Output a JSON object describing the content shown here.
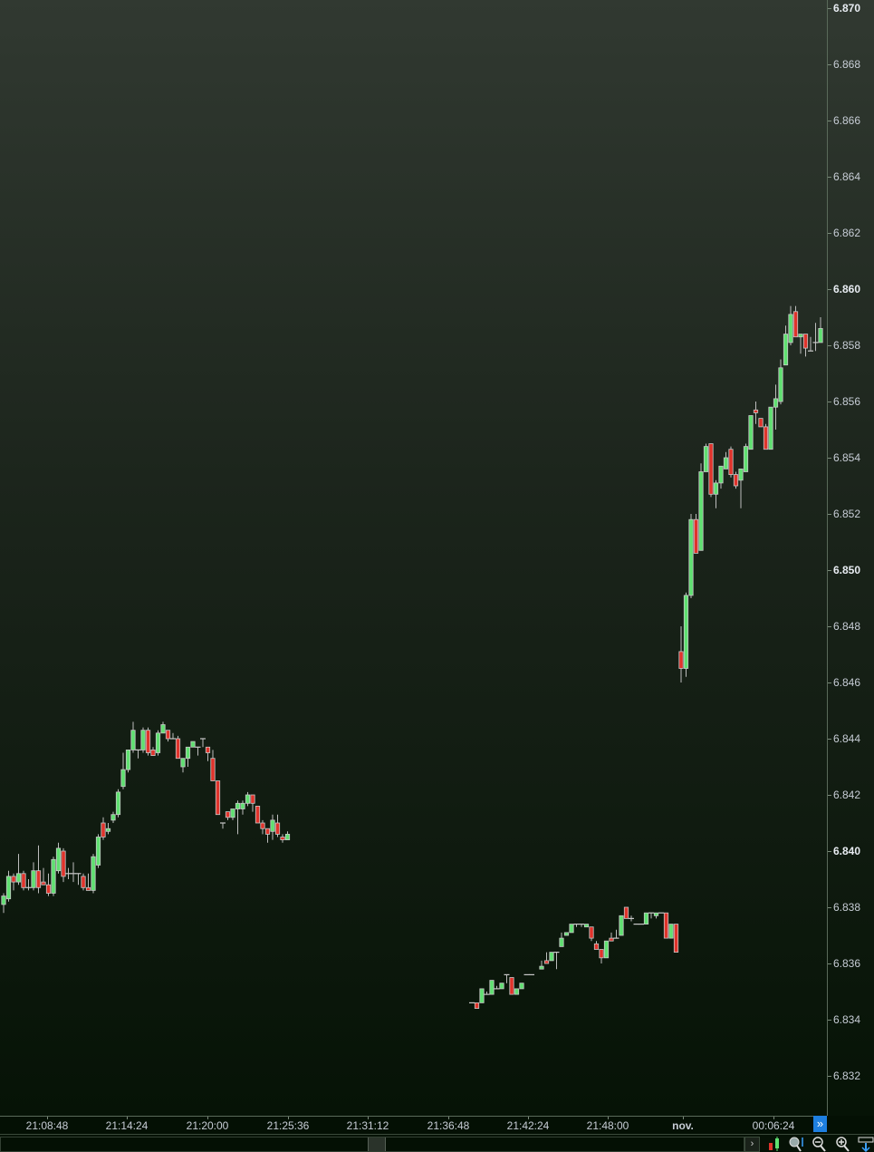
{
  "chart_data": {
    "type": "candlestick",
    "title": "",
    "y_ticks": [
      "6.870",
      "6.868",
      "6.866",
      "6.864",
      "6.862",
      "6.860",
      "6.858",
      "6.856",
      "6.854",
      "6.852",
      "6.850",
      "6.848",
      "6.846",
      "6.844",
      "6.842",
      "6.840",
      "6.838",
      "6.836",
      "6.834",
      "6.832"
    ],
    "y_bold_ticks": [
      "6.870",
      "6.860",
      "6.850",
      "6.840"
    ],
    "ylim": [
      6.8303,
      6.8703
    ],
    "x_ticks": [
      "21:08:48",
      "21:14:24",
      "21:20:00",
      "21:25:36",
      "21:31:12",
      "21:36:48",
      "21:42:24",
      "21:48:00",
      "nov.",
      "00:06:24"
    ],
    "grid": false,
    "colors": {
      "up": "#5fe070",
      "down": "#e0332b",
      "outline": "#c8c8c8",
      "wick": "#bdbdbd",
      "axis_text": "#c7cdd6",
      "accent": "#1e7fe0"
    },
    "candles_ohlc": [
      [
        6.8381,
        6.8385,
        6.8378,
        6.8384
      ],
      [
        6.8383,
        6.8393,
        6.8382,
        6.8391
      ],
      [
        6.8391,
        6.8392,
        6.8386,
        6.8389
      ],
      [
        6.8389,
        6.8399,
        6.8388,
        6.8392
      ],
      [
        6.8392,
        6.8393,
        6.8386,
        6.8387
      ],
      [
        6.8387,
        6.839,
        6.8386,
        6.8387
      ],
      [
        6.8387,
        6.8396,
        6.8386,
        6.8393
      ],
      [
        6.8393,
        6.8402,
        6.8385,
        6.8387
      ],
      [
        6.8389,
        6.8394,
        6.8388,
        6.8388
      ],
      [
        6.8388,
        6.8392,
        6.8384,
        6.8385
      ],
      [
        6.8385,
        6.8398,
        6.8384,
        6.8397
      ],
      [
        6.8393,
        6.8403,
        6.8392,
        6.8401
      ],
      [
        6.84,
        6.8401,
        6.8389,
        6.8391
      ],
      [
        6.8392,
        6.8394,
        6.839,
        6.8392
      ],
      [
        6.8392,
        6.8396,
        6.8389,
        6.8392
      ],
      [
        6.8392,
        6.8392,
        6.8388,
        6.8392
      ],
      [
        6.8391,
        6.8392,
        6.8386,
        6.8387
      ],
      [
        6.8387,
        6.8392,
        6.8386,
        6.8386
      ],
      [
        6.8386,
        6.8399,
        6.8385,
        6.8398
      ],
      [
        6.8395,
        6.8406,
        6.8394,
        6.8405
      ],
      [
        6.841,
        6.8412,
        6.8404,
        6.8405
      ],
      [
        6.8407,
        6.841,
        6.8406,
        6.8408
      ],
      [
        6.8411,
        6.8414,
        6.841,
        6.8413
      ],
      [
        6.8413,
        6.8422,
        6.8412,
        6.8421
      ],
      [
        6.8423,
        6.8435,
        6.8422,
        6.8429
      ],
      [
        6.8429,
        6.8431,
        6.8428,
        6.8436
      ],
      [
        6.8436,
        6.8446,
        6.8435,
        6.8443
      ],
      [
        6.8436,
        6.8436,
        6.8433,
        6.8436
      ],
      [
        6.8436,
        6.8444,
        6.8435,
        6.8443
      ],
      [
        6.8443,
        6.8444,
        6.8434,
        6.8435
      ],
      [
        6.8436,
        6.8437,
        6.8434,
        6.8434
      ],
      [
        6.8435,
        6.8443,
        6.8434,
        6.8442
      ],
      [
        6.8442,
        6.8446,
        6.8442,
        6.8445
      ],
      [
        6.8443,
        6.8443,
        6.8439,
        6.844
      ],
      [
        6.844,
        6.8442,
        6.844,
        6.844
      ],
      [
        6.844,
        6.8441,
        6.8433,
        6.8433
      ],
      [
        6.843,
        6.8433,
        6.8428,
        6.8433
      ],
      [
        6.8433,
        6.8437,
        6.843,
        6.8437
      ],
      [
        6.8437,
        6.8439,
        6.8437,
        6.8439
      ],
      [
        6.8437,
        6.8437,
        6.8434,
        6.8437
      ],
      [
        6.844,
        6.844,
        6.8437,
        6.844
      ],
      [
        6.8437,
        6.8437,
        6.8432,
        6.8435
      ],
      [
        6.8433,
        6.8436,
        6.8425,
        6.8425
      ],
      [
        6.8425,
        6.8425,
        6.8413,
        6.8413
      ],
      [
        6.841,
        6.841,
        6.8408,
        6.841
      ],
      [
        6.8414,
        6.8414,
        6.8411,
        6.8412
      ],
      [
        6.8412,
        6.8415,
        6.8411,
        6.8415
      ],
      [
        6.8415,
        6.8418,
        6.8406,
        6.8417
      ],
      [
        6.8415,
        6.8418,
        6.8413,
        6.8417
      ],
      [
        6.8417,
        6.8421,
        6.8416,
        6.842
      ],
      [
        6.842,
        6.842,
        6.8414,
        6.8417
      ],
      [
        6.8416,
        6.8416,
        6.841,
        6.841
      ],
      [
        6.841,
        6.8411,
        6.8406,
        6.8408
      ],
      [
        6.8408,
        6.8408,
        6.8403,
        6.8406
      ],
      [
        6.8407,
        6.8413,
        6.8404,
        6.8411
      ],
      [
        6.841,
        6.8413,
        6.8405,
        6.8406
      ],
      [
        6.8405,
        6.8406,
        6.8403,
        6.8404
      ],
      [
        6.8404,
        6.8407,
        6.8404,
        6.8406
      ],
      null,
      null,
      null,
      null,
      null,
      null,
      null,
      null,
      null,
      null,
      null,
      null,
      null,
      null,
      null,
      null,
      null,
      null,
      null,
      null,
      null,
      null,
      null,
      null,
      null,
      null,
      null,
      null,
      null,
      null,
      null,
      null,
      null,
      null,
      null,
      null,
      [
        6.8346,
        6.8346,
        6.8346,
        6.8346
      ],
      [
        6.8346,
        6.8346,
        6.8344,
        6.8344
      ],
      [
        6.8346,
        6.8351,
        6.8346,
        6.8351
      ],
      [
        6.8349,
        6.835,
        6.8349,
        6.8349
      ],
      [
        6.8349,
        6.8354,
        6.8349,
        6.8354
      ],
      [
        6.8351,
        6.8352,
        6.8351,
        6.8351
      ],
      [
        6.8351,
        6.8353,
        6.8351,
        6.8353
      ],
      [
        6.8356,
        6.8356,
        6.8353,
        6.8356
      ],
      [
        6.8355,
        6.8355,
        6.8349,
        6.8349
      ],
      [
        6.8349,
        6.8351,
        6.8349,
        6.8351
      ],
      [
        6.8351,
        6.8353,
        6.8351,
        6.8353
      ],
      [
        6.8356,
        6.8356,
        6.8356,
        6.8356
      ],
      [
        6.8356,
        6.8356,
        6.8356,
        6.8356
      ],
      null,
      [
        6.8358,
        6.8361,
        6.8358,
        6.8359
      ],
      [
        6.8361,
        6.8364,
        6.836,
        6.836
      ],
      [
        6.8361,
        6.8364,
        6.8361,
        6.8364
      ],
      [
        6.8364,
        6.8364,
        6.8358,
        6.8364
      ],
      [
        6.8366,
        6.8371,
        6.8366,
        6.8369
      ],
      [
        6.837,
        6.8371,
        6.837,
        6.8371
      ],
      [
        6.8371,
        6.8374,
        6.8371,
        6.8374
      ],
      [
        6.8374,
        6.8374,
        6.8373,
        6.8374
      ],
      [
        6.8374,
        6.8374,
        6.8373,
        6.8374
      ],
      [
        6.8373,
        6.8374,
        6.8373,
        6.8374
      ],
      [
        6.8373,
        6.8373,
        6.8368,
        6.8369
      ],
      [
        6.8367,
        6.8368,
        6.8365,
        6.8365
      ],
      [
        6.8365,
        6.8365,
        6.836,
        6.8362
      ],
      [
        6.8362,
        6.8368,
        6.8362,
        6.8368
      ],
      [
        6.8369,
        6.8371,
        6.8368,
        6.8368
      ],
      [
        6.8369,
        6.8372,
        6.8369,
        6.8369
      ],
      [
        6.837,
        6.8377,
        6.837,
        6.8377
      ],
      [
        6.838,
        6.838,
        6.8376,
        6.8376
      ],
      [
        6.8376,
        6.8377,
        6.8375,
        6.8376
      ],
      [
        6.8374,
        6.8374,
        6.8374,
        6.8374
      ],
      [
        6.8374,
        6.8374,
        6.8374,
        6.8374
      ],
      [
        6.8374,
        6.8378,
        6.8374,
        6.8378
      ],
      [
        6.8378,
        6.8378,
        6.8376,
        6.8378
      ],
      [
        6.8377,
        6.8378,
        6.8376,
        6.8378
      ],
      [
        6.8378,
        6.8378,
        6.8378,
        6.8378
      ],
      [
        6.8378,
        6.8378,
        6.8369,
        6.8369
      ],
      [
        6.8369,
        6.8374,
        6.8369,
        6.8374
      ],
      [
        6.8374,
        6.8374,
        6.8364,
        6.8364
      ],
      [
        6.8471,
        6.848,
        6.846,
        6.8465
      ],
      [
        6.8465,
        6.8492,
        6.8462,
        6.8491
      ],
      [
        6.8491,
        6.852,
        6.849,
        6.8518
      ],
      [
        6.8518,
        6.852,
        6.8506,
        6.8506
      ],
      [
        6.8507,
        6.8538,
        6.8507,
        6.8535
      ],
      [
        6.8535,
        6.8545,
        6.8535,
        6.8544
      ],
      [
        6.8545,
        6.8545,
        6.8526,
        6.8527
      ],
      [
        6.8527,
        6.8532,
        6.8522,
        6.8531
      ],
      [
        6.8531,
        6.8537,
        6.8529,
        6.8537
      ],
      [
        6.8536,
        6.8542,
        6.8536,
        6.854
      ],
      [
        6.8543,
        6.8544,
        6.8533,
        6.8534
      ],
      [
        6.8534,
        6.8535,
        6.8529,
        6.853
      ],
      [
        6.8532,
        6.8536,
        6.8522,
        6.8536
      ],
      [
        6.8535,
        6.8545,
        6.8535,
        6.8544
      ],
      [
        6.8543,
        6.8555,
        6.8543,
        6.8555
      ],
      [
        6.8557,
        6.856,
        6.8552,
        6.8556
      ],
      [
        6.8554,
        6.8554,
        6.8551,
        6.8551
      ],
      [
        6.8551,
        6.8552,
        6.8543,
        6.8543
      ],
      [
        6.8543,
        6.8558,
        6.8543,
        6.8558
      ],
      [
        6.8558,
        6.8566,
        6.855,
        6.8561
      ],
      [
        6.856,
        6.8575,
        6.8559,
        6.8572
      ],
      [
        6.8573,
        6.8587,
        6.8573,
        6.8584
      ],
      [
        6.8581,
        6.8594,
        6.858,
        6.8591
      ],
      [
        6.8592,
        6.8594,
        6.8583,
        6.8583
      ],
      [
        6.8583,
        6.8584,
        6.8577,
        6.8584
      ],
      [
        6.8584,
        6.8584,
        6.8576,
        6.8579
      ],
      [
        6.8578,
        6.8583,
        6.8578,
        6.8578
      ],
      [
        6.8581,
        6.8588,
        6.8578,
        6.8581
      ],
      [
        6.8581,
        6.859,
        6.8581,
        6.8586
      ]
    ]
  },
  "toolbar": {
    "scroll_end_label": "»",
    "scroll_right_label": "›"
  }
}
